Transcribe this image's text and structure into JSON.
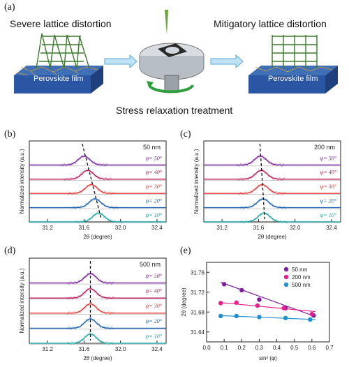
{
  "schematic": {
    "label": "(a)",
    "left_title": "Severe lattice distortion",
    "right_title": "Mitigatory lattice distortion",
    "film_label": "Perovskite film",
    "center_caption": "Stress relaxation treatment"
  },
  "chart_data": [
    {
      "type": "line",
      "panel": "(b)",
      "thickness_label": "50 nm",
      "xlabel": "2θ (degree)",
      "ylabel": "Normalized intensity (a.u.)",
      "xlim": [
        31.0,
        32.5
      ],
      "xticks": [
        "31.2",
        "31.6",
        "32.0",
        "32.4"
      ],
      "series": [
        {
          "name": "ψ= 50°",
          "color": "#7b1fa2",
          "peak": 31.6
        },
        {
          "name": "ψ= 40°",
          "color": "#c2185b",
          "peak": 31.64
        },
        {
          "name": "ψ= 30°",
          "color": "#e53935",
          "peak": 31.68
        },
        {
          "name": "ψ= 20°",
          "color": "#1e63b8",
          "peak": 31.72
        },
        {
          "name": "ψ= 10°",
          "color": "#1aa3a3",
          "peak": 31.76
        }
      ]
    },
    {
      "type": "line",
      "panel": "(c)",
      "thickness_label": "200 nm",
      "xlabel": "2θ (degree)",
      "ylabel": "Normalized intensity (a.u.)",
      "xlim": [
        31.0,
        32.5
      ],
      "xticks": [
        "31.2",
        "31.6",
        "32.0",
        "32.4"
      ],
      "series": [
        {
          "name": "ψ= 50°",
          "color": "#7b1fa2",
          "peak": 31.62
        },
        {
          "name": "ψ= 40°",
          "color": "#c2185b",
          "peak": 31.63
        },
        {
          "name": "ψ= 30°",
          "color": "#e53935",
          "peak": 31.64
        },
        {
          "name": "ψ= 20°",
          "color": "#1e63b8",
          "peak": 31.65
        },
        {
          "name": "ψ= 10°",
          "color": "#1aa3a3",
          "peak": 31.66
        }
      ]
    },
    {
      "type": "line",
      "panel": "(d)",
      "thickness_label": "500 nm",
      "xlabel": "2θ (degree)",
      "ylabel": "Normalized intensity (a.u.)",
      "xlim": [
        31.0,
        32.5
      ],
      "xticks": [
        "31.2",
        "31.6",
        "32.0",
        "32.4"
      ],
      "series": [
        {
          "name": "ψ= 50°",
          "color": "#7b1fa2",
          "peak": 31.67
        },
        {
          "name": "ψ= 40°",
          "color": "#c2185b",
          "peak": 31.67
        },
        {
          "name": "ψ= 30°",
          "color": "#e53935",
          "peak": 31.67
        },
        {
          "name": "ψ= 20°",
          "color": "#1e63b8",
          "peak": 31.67
        },
        {
          "name": "ψ= 10°",
          "color": "#1aa3a3",
          "peak": 31.67
        }
      ]
    },
    {
      "type": "scatter",
      "panel": "(e)",
      "xlabel": "sin² (φ)",
      "ylabel": "2θ (degree)",
      "xlim": [
        0.0,
        0.7
      ],
      "ylim": [
        31.62,
        31.78
      ],
      "xticks": [
        "0.0",
        "0.1",
        "0.2",
        "0.3",
        "0.4",
        "0.5",
        "0.6",
        "0.7"
      ],
      "yticks": [
        "31.64",
        "31.68",
        "31.72",
        "31.76"
      ],
      "legend_position": "top-right",
      "series": [
        {
          "name": "50 nm",
          "color": "#7b1fa2",
          "x": [
            0.1,
            0.2,
            0.3,
            0.45,
            0.61
          ],
          "y": [
            31.736,
            31.724,
            31.705,
            31.688,
            31.673
          ],
          "fit": [
            [
              0.08,
              31.74
            ],
            [
              0.62,
              31.671
            ]
          ]
        },
        {
          "name": "200 nm",
          "color": "#e91e8c",
          "x": [
            0.08,
            0.17,
            0.29,
            0.44,
            0.6
          ],
          "y": [
            31.698,
            31.699,
            31.693,
            31.688,
            31.676
          ],
          "fit": [
            [
              0.08,
              31.699
            ],
            [
              0.62,
              31.681
            ]
          ]
        },
        {
          "name": "500 nm",
          "color": "#1f8fd6",
          "x": [
            0.08,
            0.17,
            0.3,
            0.45,
            0.59
          ],
          "y": [
            31.672,
            31.672,
            31.67,
            31.668,
            31.665
          ],
          "fit": [
            [
              0.07,
              31.673
            ],
            [
              0.62,
              31.665
            ]
          ]
        }
      ]
    }
  ]
}
